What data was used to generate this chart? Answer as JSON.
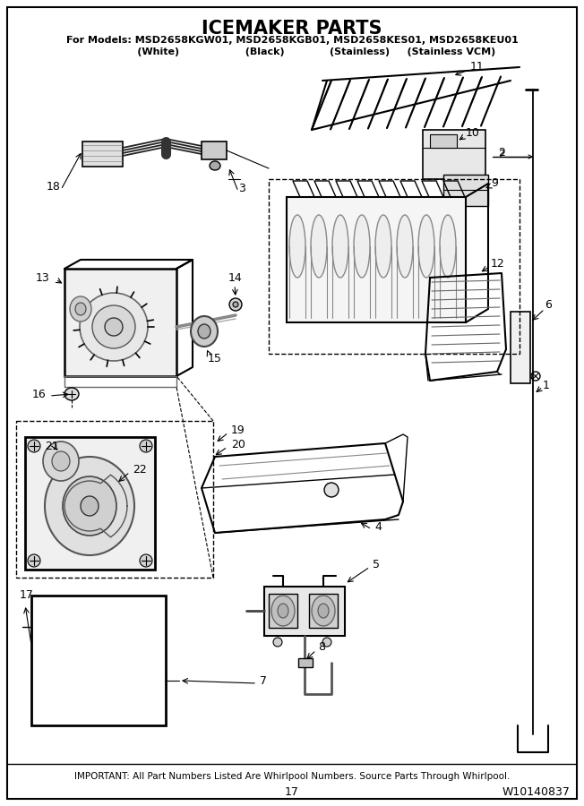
{
  "title": "ICEMAKER PARTS",
  "subtitle": "For Models: MSD2658KGW01, MSD2658KGB01, MSD2658KES01, MSD2658KEU01",
  "subtitle2": "              (White)                   (Black)             (Stainless)     (Stainless VCM)",
  "footer": "IMPORTANT: All Part Numbers Listed Are Whirlpool Numbers. Source Parts Through Whirlpool.",
  "page_number": "17",
  "doc_number": "W10140837",
  "bg_color": "#ffffff",
  "figsize": [
    6.52,
    9.0
  ],
  "dpi": 100
}
